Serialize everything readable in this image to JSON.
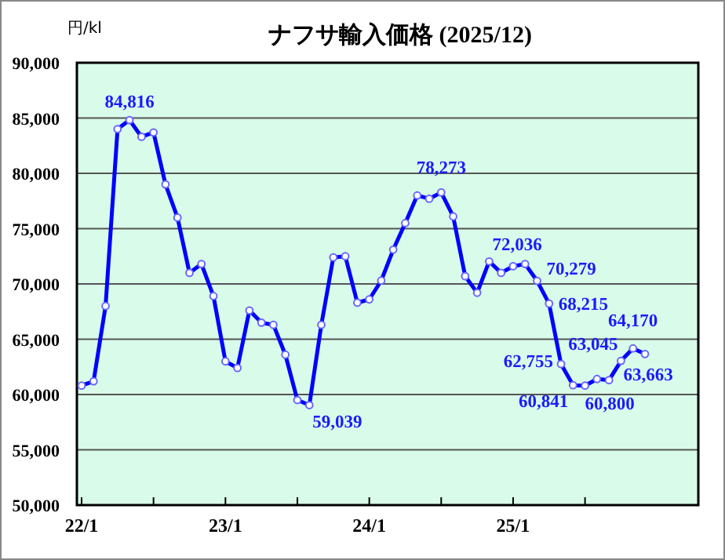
{
  "chart_data": {
    "type": "line",
    "title": "ナフサ輸入価格  (2025/12)",
    "ylabel": "円/kl",
    "categories": [
      "22/1",
      null,
      null,
      null,
      null,
      null,
      null,
      null,
      null,
      null,
      null,
      null,
      "23/1",
      null,
      null,
      null,
      null,
      null,
      null,
      null,
      null,
      null,
      null,
      null,
      "24/1",
      null,
      null,
      null,
      null,
      null,
      null,
      null,
      null,
      null,
      null,
      null,
      "25/1",
      null,
      null,
      null,
      null,
      null,
      null,
      null,
      null,
      null,
      null,
      null
    ],
    "series": [
      {
        "color": "#0000ff",
        "values": [
          60800,
          61200,
          68000,
          84000,
          84816,
          83300,
          83700,
          79000,
          76000,
          71000,
          71800,
          68900,
          63000,
          62400,
          67600,
          66500,
          66300,
          63600,
          59500,
          59039,
          66300,
          72400,
          72500,
          68300,
          68600,
          70300,
          73100,
          75500,
          78000,
          77700,
          78273,
          76100,
          70700,
          69200,
          72036,
          71000,
          71600,
          71800,
          70279,
          68215,
          62755,
          60841,
          60800,
          61400,
          61300,
          63045,
          64170,
          63663
        ],
        "value_labels": [
          null,
          null,
          null,
          null,
          "84,816",
          null,
          null,
          null,
          null,
          null,
          null,
          null,
          null,
          null,
          null,
          null,
          null,
          null,
          null,
          "59,039",
          null,
          null,
          null,
          null,
          null,
          null,
          null,
          null,
          null,
          null,
          "78,273",
          null,
          null,
          null,
          "72,036",
          null,
          null,
          null,
          "70,279",
          "68,215",
          "62,755",
          "60,841",
          "60,800",
          null,
          null,
          "63,045",
          "64,170",
          "63,663"
        ]
      }
    ],
    "ylim": [
      50000,
      90000
    ],
    "yticks": [
      {
        "value": 50000,
        "label": "50,000"
      },
      {
        "value": 55000,
        "label": "55,000"
      },
      {
        "value": 60000,
        "label": "60,000"
      },
      {
        "value": 65000,
        "label": "65,000"
      },
      {
        "value": 70000,
        "label": "70,000"
      },
      {
        "value": 75000,
        "label": "75,000"
      },
      {
        "value": 80000,
        "label": "80,000"
      },
      {
        "value": 85000,
        "label": "85,000"
      },
      {
        "value": 90000,
        "label": "90,000"
      }
    ],
    "grid": "y",
    "marker": "circle",
    "line_style": "solid"
  }
}
